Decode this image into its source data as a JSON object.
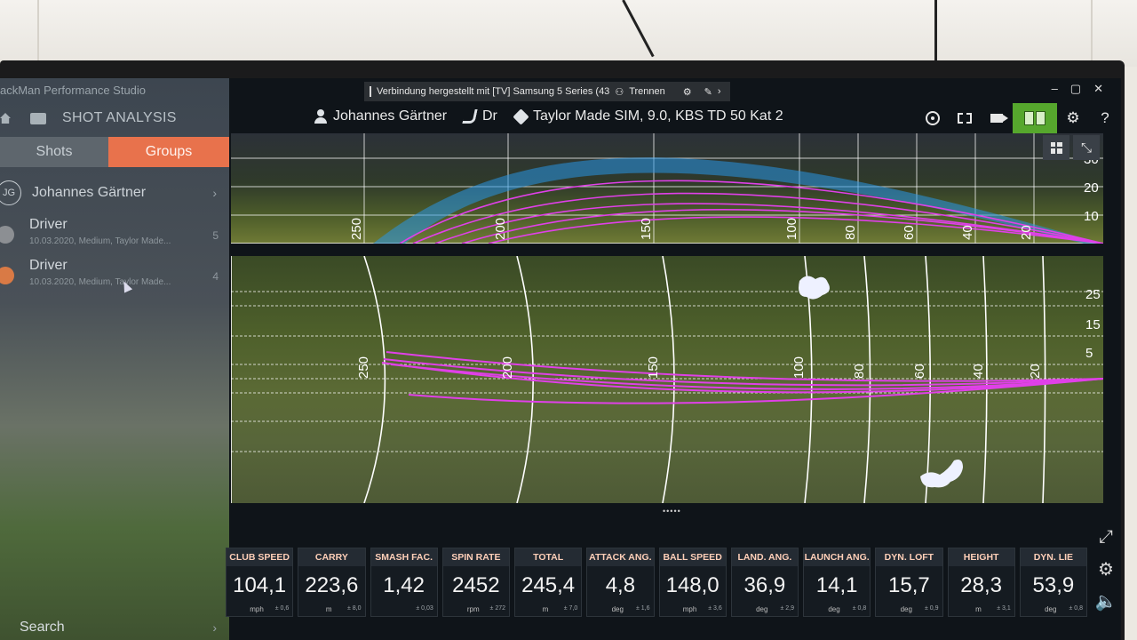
{
  "app": {
    "title": "ackMan Performance Studio",
    "nav_label": "SHOT ANALYSIS"
  },
  "tabs": {
    "shots": "Shots",
    "groups": "Groups"
  },
  "player": {
    "initials": "JG",
    "name": "Johannes Gärtner"
  },
  "groups": [
    {
      "name": "Driver",
      "meta": "10.03.2020, Medium, Taylor Made...",
      "count": "5",
      "icon_color": "#8c8f93"
    },
    {
      "name": "Driver",
      "meta": "10.03.2020, Medium, Taylor Made...",
      "count": "4",
      "icon_color": "#d97a45"
    }
  ],
  "search_label": "Search",
  "cast": {
    "text": "Verbindung hergestellt mit [TV] Samsung 5 Series (43",
    "disconnect": "Trennen"
  },
  "toolbar": {
    "player": "Johannes Gärtner",
    "club": "Dr",
    "equipment": "Taylor Made SIM, 9.0, KBS TD 50 Kat 2"
  },
  "side_view": {
    "distance_labels": [
      "250",
      "200",
      "150",
      "100",
      "80",
      "60",
      "40",
      "20"
    ],
    "height_labels": [
      "30",
      "20",
      "10"
    ]
  },
  "top_view": {
    "distance_labels": [
      "250",
      "200",
      "150",
      "100",
      "80",
      "60",
      "40",
      "20"
    ],
    "lateral_labels": [
      "25",
      "15",
      "5"
    ]
  },
  "tiles": [
    {
      "label": "CLUB SPEED",
      "value": "104,1",
      "unit": "mph",
      "dev": "± 0,6"
    },
    {
      "label": "CARRY",
      "value": "223,6",
      "unit": "m",
      "dev": "± 8,0"
    },
    {
      "label": "SMASH FAC.",
      "value": "1,42",
      "unit": "",
      "dev": "± 0,03"
    },
    {
      "label": "SPIN RATE",
      "value": "2452",
      "unit": "rpm",
      "dev": "± 272"
    },
    {
      "label": "TOTAL",
      "value": "245,4",
      "unit": "m",
      "dev": "± 7,0"
    },
    {
      "label": "ATTACK ANG.",
      "value": "4,8",
      "unit": "deg",
      "dev": "± 1,6"
    },
    {
      "label": "BALL SPEED",
      "value": "148,0",
      "unit": "mph",
      "dev": "± 3,6"
    },
    {
      "label": "LAND. ANG.",
      "value": "36,9",
      "unit": "deg",
      "dev": "± 2,9"
    },
    {
      "label": "LAUNCH ANG.",
      "value": "14,1",
      "unit": "deg",
      "dev": "± 0,8"
    },
    {
      "label": "DYN. LOFT",
      "value": "15,7",
      "unit": "deg",
      "dev": "± 0,9"
    },
    {
      "label": "HEIGHT",
      "value": "28,3",
      "unit": "m",
      "dev": "± 3,1"
    },
    {
      "label": "DYN. LIE",
      "value": "53,9",
      "unit": "deg",
      "dev": "± 0,8"
    }
  ],
  "colors": {
    "groups_tab": "#e8724c",
    "active_tool": "#56a72d",
    "trajectory": "#e040e8",
    "envelope": "#2fa6e6"
  }
}
